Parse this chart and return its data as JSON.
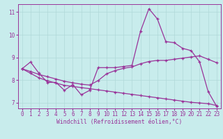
{
  "xlabel": "Windchill (Refroidissement éolien,°C)",
  "bg_color": "#c8ecec",
  "grid_color": "#b0d8d8",
  "line_color": "#993399",
  "xlim": [
    -0.5,
    23.5
  ],
  "ylim": [
    6.75,
    11.35
  ],
  "xticks": [
    0,
    1,
    2,
    3,
    4,
    5,
    6,
    7,
    8,
    9,
    10,
    11,
    12,
    13,
    14,
    15,
    16,
    17,
    18,
    19,
    20,
    21,
    22,
    23
  ],
  "yticks": [
    7,
    8,
    9,
    10,
    11
  ],
  "series1_x": [
    0,
    1,
    2,
    3,
    4,
    5,
    6,
    7,
    8,
    9,
    10,
    11,
    12,
    13,
    14,
    15,
    16,
    17,
    18,
    19,
    20,
    21,
    22,
    23
  ],
  "series1_y": [
    8.5,
    8.8,
    8.3,
    7.9,
    7.9,
    7.55,
    7.8,
    7.35,
    7.55,
    8.55,
    8.55,
    8.55,
    8.6,
    8.65,
    10.15,
    11.15,
    10.7,
    9.7,
    9.65,
    9.4,
    9.3,
    8.8,
    7.5,
    6.85
  ],
  "series2_x": [
    0,
    1,
    2,
    3,
    4,
    5,
    6,
    7,
    8,
    9,
    10,
    11,
    12,
    13,
    14,
    15,
    16,
    17,
    18,
    19,
    20,
    21,
    22,
    23
  ],
  "series2_y": [
    8.5,
    8.38,
    8.25,
    8.15,
    8.05,
    7.95,
    7.88,
    7.82,
    7.78,
    7.98,
    8.28,
    8.42,
    8.52,
    8.58,
    8.72,
    8.82,
    8.87,
    8.87,
    8.92,
    8.97,
    9.02,
    9.07,
    8.92,
    8.77
  ],
  "series3_x": [
    0,
    1,
    2,
    3,
    4,
    5,
    6,
    7,
    8,
    9,
    10,
    11,
    12,
    13,
    14,
    15,
    16,
    17,
    18,
    19,
    20,
    21,
    22,
    23
  ],
  "series3_y": [
    8.5,
    8.3,
    8.1,
    7.97,
    7.87,
    7.77,
    7.72,
    7.67,
    7.62,
    7.57,
    7.52,
    7.47,
    7.42,
    7.37,
    7.32,
    7.27,
    7.22,
    7.17,
    7.12,
    7.07,
    7.02,
    6.99,
    6.96,
    6.88
  ]
}
